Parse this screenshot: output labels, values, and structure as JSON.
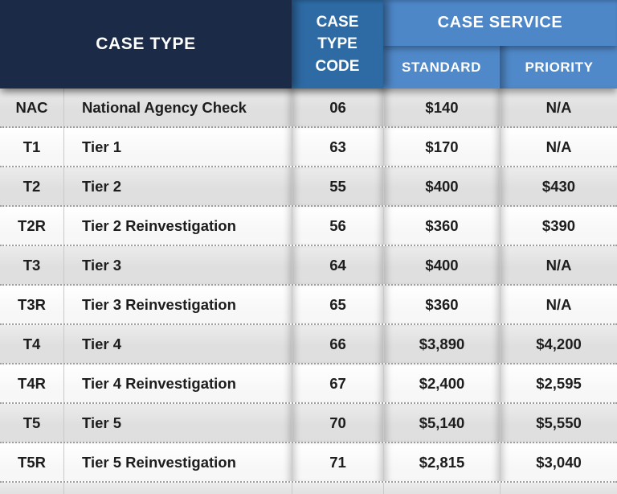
{
  "table": {
    "header": {
      "case_type": "CASE TYPE",
      "case_type_code": "CASE TYPE CODE",
      "case_service": "CASE SERVICE",
      "standard": "STANDARD",
      "priority": "PRIORITY"
    },
    "rows": [
      {
        "abbr": "NAC",
        "name": "National Agency Check",
        "code": "06",
        "standard": "$140",
        "priority": "N/A"
      },
      {
        "abbr": "T1",
        "name": "Tier 1",
        "code": "63",
        "standard": "$170",
        "priority": "N/A"
      },
      {
        "abbr": "T2",
        "name": "Tier 2",
        "code": "55",
        "standard": "$400",
        "priority": "$430"
      },
      {
        "abbr": "T2R",
        "name": "Tier 2 Reinvestigation",
        "code": "56",
        "standard": "$360",
        "priority": "$390"
      },
      {
        "abbr": "T3",
        "name": "Tier 3",
        "code": "64",
        "standard": "$400",
        "priority": "N/A"
      },
      {
        "abbr": "T3R",
        "name": "Tier 3 Reinvestigation",
        "code": "65",
        "standard": "$360",
        "priority": "N/A"
      },
      {
        "abbr": "T4",
        "name": "Tier 4",
        "code": "66",
        "standard": "$3,890",
        "priority": "$4,200"
      },
      {
        "abbr": "T4R",
        "name": "Tier 4 Reinvestigation",
        "code": "67",
        "standard": "$2,400",
        "priority": "$2,595"
      },
      {
        "abbr": "T5",
        "name": "Tier 5",
        "code": "70",
        "standard": "$5,140",
        "priority": "$5,550"
      },
      {
        "abbr": "T5R",
        "name": "Tier 5 Reinvestigation",
        "code": "71",
        "standard": "$2,815",
        "priority": "$3,040"
      }
    ]
  },
  "colors": {
    "navy": "#1b2a47",
    "code_blue": "#2e6ba5",
    "service_blue": "#4d87c8",
    "subheader_blue": "#5089c9",
    "divider_blue": "#38639a",
    "text_dark": "#1d1d1d",
    "row_line": "#c9c9c9",
    "dash": "#9e9e9e"
  }
}
